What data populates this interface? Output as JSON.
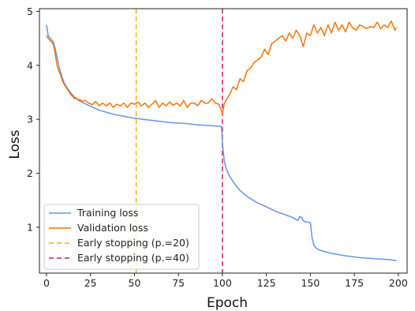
{
  "chart_data": {
    "type": "line",
    "title": "",
    "xlabel": "Epoch",
    "ylabel": "Loss",
    "xlim": [
      -4,
      205
    ],
    "ylim": [
      0.15,
      5.05
    ],
    "xticks": [
      0,
      25,
      50,
      75,
      100,
      125,
      150,
      175,
      200
    ],
    "yticks": [
      1,
      2,
      3,
      4,
      5
    ],
    "grid": false,
    "legend_position": "lower-left",
    "series": [
      {
        "name": "Training loss",
        "color": "#6495ED",
        "style": "solid",
        "x": [
          0,
          1,
          2,
          3,
          4,
          5,
          6,
          7,
          8,
          9,
          10,
          12,
          14,
          16,
          18,
          20,
          25,
          30,
          35,
          40,
          45,
          50,
          55,
          60,
          65,
          70,
          75,
          80,
          85,
          90,
          95,
          98,
          99,
          99.5,
          100,
          101,
          102,
          104,
          106,
          108,
          110,
          115,
          120,
          125,
          130,
          135,
          140,
          142,
          143,
          144,
          145,
          146,
          147,
          148,
          149,
          150,
          151,
          152,
          153,
          155,
          160,
          165,
          170,
          175,
          180,
          185,
          190,
          195,
          199
        ],
        "y": [
          4.75,
          4.55,
          4.5,
          4.47,
          4.43,
          4.3,
          4.15,
          4.0,
          3.87,
          3.77,
          3.68,
          3.57,
          3.48,
          3.41,
          3.36,
          3.32,
          3.24,
          3.17,
          3.12,
          3.08,
          3.05,
          3.02,
          3.0,
          2.98,
          2.96,
          2.94,
          2.93,
          2.92,
          2.9,
          2.89,
          2.88,
          2.87,
          2.87,
          2.87,
          2.55,
          2.25,
          2.1,
          1.95,
          1.85,
          1.76,
          1.68,
          1.55,
          1.45,
          1.38,
          1.3,
          1.24,
          1.18,
          1.14,
          1.13,
          1.2,
          1.18,
          1.12,
          1.1,
          1.1,
          1.09,
          1.08,
          0.8,
          0.67,
          0.62,
          0.58,
          0.53,
          0.5,
          0.47,
          0.45,
          0.43,
          0.42,
          0.41,
          0.4,
          0.38
        ]
      },
      {
        "name": "Validation loss",
        "color": "#F97306",
        "style": "solid",
        "x": [
          0,
          1,
          2,
          3,
          4,
          5,
          6,
          7,
          8,
          9,
          10,
          11,
          12,
          13,
          14,
          15,
          16,
          17,
          18,
          19,
          20,
          22,
          24,
          26,
          28,
          30,
          32,
          34,
          36,
          38,
          40,
          42,
          44,
          46,
          48,
          50,
          52,
          54,
          56,
          58,
          60,
          62,
          64,
          66,
          68,
          70,
          72,
          74,
          76,
          78,
          80,
          82,
          84,
          86,
          88,
          90,
          92,
          94,
          96,
          98,
          99,
          100,
          101,
          102,
          104,
          106,
          108,
          110,
          112,
          114,
          116,
          118,
          120,
          122,
          124,
          126,
          128,
          130,
          132,
          134,
          136,
          138,
          140,
          142,
          144,
          146,
          148,
          150,
          152,
          154,
          156,
          158,
          160,
          162,
          164,
          166,
          168,
          170,
          172,
          174,
          176,
          178,
          180,
          182,
          184,
          186,
          188,
          190,
          192,
          194,
          196,
          198,
          199
        ],
        "y": [
          4.55,
          4.5,
          4.46,
          4.43,
          4.38,
          4.2,
          4.0,
          3.9,
          3.82,
          3.72,
          3.65,
          3.6,
          3.55,
          3.5,
          3.45,
          3.42,
          3.38,
          3.4,
          3.35,
          3.37,
          3.33,
          3.35,
          3.3,
          3.27,
          3.33,
          3.25,
          3.3,
          3.25,
          3.3,
          3.22,
          3.28,
          3.25,
          3.3,
          3.22,
          3.3,
          3.28,
          3.32,
          3.25,
          3.3,
          3.22,
          3.28,
          3.35,
          3.22,
          3.3,
          3.25,
          3.32,
          3.26,
          3.3,
          3.25,
          3.35,
          3.22,
          3.3,
          3.3,
          3.25,
          3.35,
          3.3,
          3.3,
          3.38,
          3.3,
          3.28,
          3.2,
          3.1,
          3.28,
          3.35,
          3.45,
          3.6,
          3.55,
          3.75,
          3.7,
          3.9,
          3.95,
          4.05,
          4.1,
          4.15,
          4.3,
          4.2,
          4.4,
          4.45,
          4.5,
          4.55,
          4.45,
          4.6,
          4.5,
          4.65,
          4.55,
          4.35,
          4.6,
          4.55,
          4.75,
          4.6,
          4.7,
          4.55,
          4.75,
          4.6,
          4.8,
          4.65,
          4.75,
          4.62,
          4.8,
          4.7,
          4.65,
          4.75,
          4.72,
          4.68,
          4.72,
          4.7,
          4.8,
          4.68,
          4.75,
          4.7,
          4.82,
          4.65,
          4.7
        ]
      }
    ],
    "vlines": [
      {
        "x": 51,
        "name": "Early stopping (p.=20)",
        "color": "#FFB000",
        "style": "dashed"
      },
      {
        "x": 100,
        "name": "Early stopping (p.=40)",
        "color": "#D81B60",
        "style": "dashed"
      }
    ]
  }
}
